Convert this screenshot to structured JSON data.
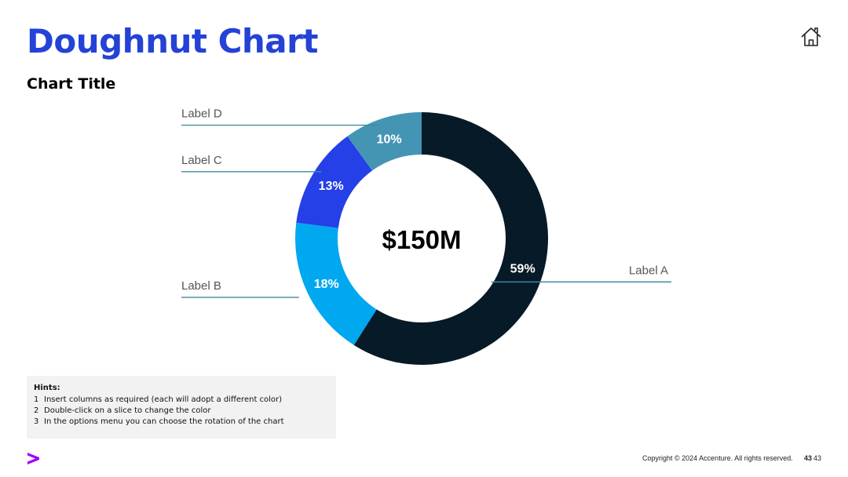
{
  "header": {
    "title": "Doughnut Chart",
    "subtitle": "Chart Title",
    "title_color": "#2442d6"
  },
  "icons": {
    "home": "home-icon",
    "logo": "accenture-chevron-logo"
  },
  "chart_data": {
    "type": "doughnut",
    "center_label": "$150M",
    "slices": [
      {
        "label": "Label A",
        "value": 59,
        "value_label": "59%",
        "color": "#071a27"
      },
      {
        "label": "Label B",
        "value": 18,
        "value_label": "18%",
        "color": "#00a8f0"
      },
      {
        "label": "Label C",
        "value": 13,
        "value_label": "13%",
        "color": "#2440e6"
      },
      {
        "label": "Label D",
        "value": 10,
        "value_label": "10%",
        "color": "#4495b4"
      }
    ],
    "start": "top, clockwise",
    "leader_line_color": "#3f8aa0"
  },
  "hints": {
    "title": "Hints:",
    "items": [
      {
        "num": "1",
        "text": "Insert columns as required (each will adopt a different color)"
      },
      {
        "num": "2",
        "text": "Double-click on a slice to change the color"
      },
      {
        "num": "3",
        "text": "In the options menu you can choose the rotation of the chart"
      }
    ]
  },
  "footer": {
    "copyright": "Copyright © 2024 Accenture. All rights reserved.",
    "page_bold": "43",
    "page": "43",
    "logo_color": "#a100ff"
  }
}
